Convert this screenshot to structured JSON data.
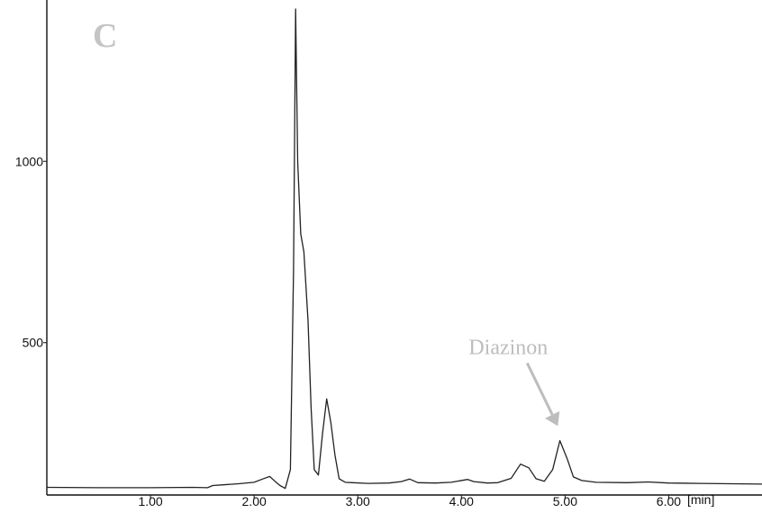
{
  "chart_data": {
    "type": "line",
    "panel_label": "C",
    "x_unit_label": "[min]",
    "xlim": [
      0.0,
      6.9
    ],
    "ylim": [
      80,
      1420
    ],
    "x_ticks": [
      {
        "value": 1.0,
        "label": "1.00"
      },
      {
        "value": 2.0,
        "label": "2.00"
      },
      {
        "value": 3.0,
        "label": "3.00"
      },
      {
        "value": 4.0,
        "label": "4.00"
      },
      {
        "value": 5.0,
        "label": "5.00"
      },
      {
        "value": 6.0,
        "label": "6.00"
      }
    ],
    "y_ticks": [
      {
        "value": 500,
        "label": "500"
      },
      {
        "value": 1000,
        "label": "1000"
      }
    ],
    "annotations": [
      {
        "text": "Diazinon",
        "x": 4.93,
        "y": 270
      }
    ],
    "colors": {
      "trace": "#222222",
      "axis": "#111111",
      "annotation": "#bdbdbd",
      "panel_label": "#c4c4c4"
    },
    "series": [
      {
        "x": [
          0.0,
          0.5,
          1.0,
          1.4,
          1.55,
          1.6,
          1.7,
          1.85,
          2.0,
          2.08,
          2.15,
          2.2,
          2.25,
          2.3,
          2.35,
          2.38,
          2.4,
          2.42,
          2.45,
          2.48,
          2.52,
          2.55,
          2.58,
          2.62,
          2.66,
          2.7,
          2.74,
          2.78,
          2.82,
          2.88,
          2.95,
          3.1,
          3.3,
          3.42,
          3.5,
          3.58,
          3.75,
          3.9,
          3.98,
          4.06,
          4.12,
          4.25,
          4.35,
          4.48,
          4.57,
          4.65,
          4.72,
          4.8,
          4.88,
          4.95,
          5.02,
          5.08,
          5.16,
          5.3,
          5.6,
          5.8,
          6.0,
          6.3,
          6.9
        ],
        "y": [
          101,
          100,
          100,
          101,
          100,
          106,
          108,
          111,
          115,
          124,
          131,
          118,
          106,
          98,
          150,
          700,
          1420,
          1000,
          800,
          750,
          560,
          320,
          150,
          135,
          250,
          345,
          280,
          190,
          125,
          115,
          114,
          112,
          113,
          117,
          124,
          114,
          113,
          115,
          119,
          123,
          117,
          113,
          114,
          126,
          165,
          155,
          125,
          118,
          150,
          230,
          180,
          130,
          120,
          115,
          114,
          116,
          113,
          112,
          110
        ]
      }
    ]
  }
}
